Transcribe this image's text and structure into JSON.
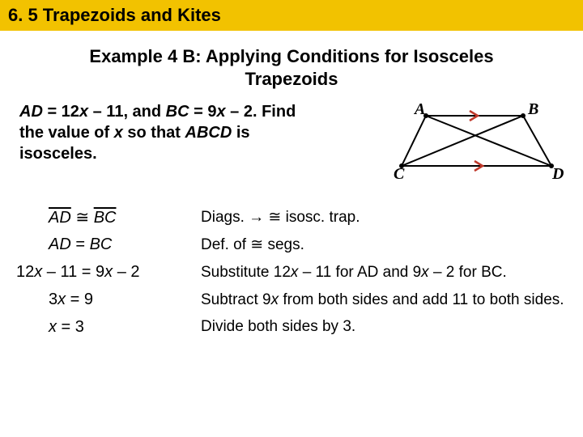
{
  "header": "6. 5 Trapezoids and Kites",
  "example_title_l1": "Example 4 B: Applying Conditions for Isosceles",
  "example_title_l2": "Trapezoids",
  "problem_l1_a": "AD",
  "problem_l1_b": " = 12",
  "problem_l1_c": "x",
  "problem_l1_d": " – 11, and ",
  "problem_l1_e": "BC",
  "problem_l1_f": " = 9",
  "problem_l1_g": "x",
  "problem_l1_h": " – 2. Find",
  "problem_l2_a": "the value of ",
  "problem_l2_b": "x",
  "problem_l2_c": " so that ",
  "problem_l2_d": "ABCD",
  "problem_l2_e": " is",
  "problem_l3": "isosceles.",
  "figure": {
    "A": "A",
    "B": "B",
    "C": "C",
    "D": "D",
    "stroke": "#000000",
    "arrow": "#c0392b"
  },
  "steps": [
    {
      "left_html": "<span class='ovl'>AD</span> <span class='cong'>≅</span> <span class='ovl'>BC</span>",
      "right_html": "Diags. → <span class='cong'>≅</span> isosc. trap."
    },
    {
      "left_html": "<span class='ital'>AD</span> = <span class='ital'>BC</span>",
      "right_html": "Def. of <span class='cong'>≅</span> segs."
    },
    {
      "left_html": "12<span class='ital'>x</span> – 11 = 9<span class='ital'>x</span> – 2",
      "right_html": "Substitute 12<span class='ital'>x</span> – 11 for AD and 9<span class='ital'>x</span> – 2 for BC.",
      "wide": true
    },
    {
      "left_html": "3<span class='ital'>x</span> = 9",
      "right_html": "Subtract 9<span class='ital'>x</span> from both sides and add 11 to both sides."
    },
    {
      "left_html": "<span class='ital'>x</span> = 3",
      "right_html": "Divide both sides by 3."
    }
  ]
}
